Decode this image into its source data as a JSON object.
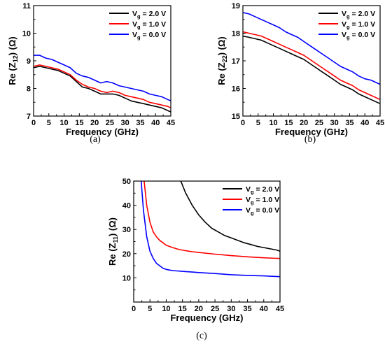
{
  "chart_data": [
    {
      "panel": "(a)",
      "type": "line",
      "xlabel": "Frequency (GHz)",
      "ylabel": "Re (Z12) (Ω)",
      "ylabel_main": "Re (Z",
      "ylabel_sub": "12",
      "ylabel_tail": ") (Ω)",
      "xlim": [
        0,
        45
      ],
      "ylim": [
        7,
        11
      ],
      "xticks": [
        0,
        5,
        10,
        15,
        20,
        25,
        30,
        35,
        40,
        45
      ],
      "yticks": [
        7,
        8,
        9,
        10,
        11
      ],
      "legend_position": "top-right",
      "series": [
        {
          "name": "Vg = 2.0 V",
          "label_main": "V",
          "label_sub": "g",
          "label_tail": " = 2.0 V",
          "color": "#000000",
          "x": [
            0,
            2,
            4,
            6,
            8,
            10,
            12,
            14,
            16,
            18,
            20,
            22,
            24,
            26,
            28,
            30,
            32,
            34,
            36,
            38,
            40,
            42,
            44,
            45
          ],
          "y": [
            8.75,
            8.8,
            8.75,
            8.7,
            8.65,
            8.55,
            8.45,
            8.25,
            8.05,
            8.0,
            7.9,
            7.8,
            7.8,
            7.8,
            7.75,
            7.65,
            7.55,
            7.5,
            7.45,
            7.4,
            7.35,
            7.3,
            7.2,
            7.15
          ]
        },
        {
          "name": "Vg = 1.0 V",
          "label_main": "V",
          "label_sub": "g",
          "label_tail": " = 1.0 V",
          "color": "#ff0000",
          "x": [
            0,
            2,
            4,
            6,
            8,
            10,
            12,
            14,
            16,
            18,
            20,
            22,
            24,
            26,
            28,
            30,
            32,
            34,
            36,
            38,
            40,
            42,
            44,
            45
          ],
          "y": [
            8.8,
            8.85,
            8.8,
            8.75,
            8.7,
            8.6,
            8.5,
            8.3,
            8.15,
            8.05,
            8.0,
            7.9,
            7.85,
            7.9,
            7.85,
            7.75,
            7.7,
            7.65,
            7.6,
            7.5,
            7.45,
            7.4,
            7.35,
            7.3
          ]
        },
        {
          "name": "Vg = 0.0 V",
          "label_main": "V",
          "label_sub": "g",
          "label_tail": " = 0.0 V",
          "color": "#0000ff",
          "x": [
            0,
            2,
            4,
            6,
            8,
            10,
            12,
            14,
            16,
            18,
            20,
            22,
            24,
            26,
            28,
            30,
            32,
            34,
            36,
            38,
            40,
            42,
            44,
            45
          ],
          "y": [
            9.2,
            9.2,
            9.1,
            9.05,
            8.95,
            8.85,
            8.75,
            8.55,
            8.45,
            8.4,
            8.3,
            8.2,
            8.25,
            8.2,
            8.1,
            8.05,
            8.0,
            7.95,
            7.9,
            7.8,
            7.75,
            7.7,
            7.6,
            7.55
          ]
        }
      ]
    },
    {
      "panel": "(b)",
      "type": "line",
      "xlabel": "Frequency (GHz)",
      "ylabel": "Re (Z22) (Ω)",
      "ylabel_main": "Re (Z",
      "ylabel_sub": "22",
      "ylabel_tail": ") (Ω)",
      "xlim": [
        0,
        45
      ],
      "ylim": [
        15,
        19
      ],
      "xticks": [
        0,
        5,
        10,
        15,
        20,
        25,
        30,
        35,
        40,
        45
      ],
      "yticks": [
        15,
        16,
        17,
        18,
        19
      ],
      "legend_position": "top-right",
      "series": [
        {
          "name": "Vg = 2.0 V",
          "label_main": "V",
          "label_sub": "g",
          "label_tail": " = 2.0 V",
          "color": "#000000",
          "x": [
            0,
            2,
            4,
            6,
            8,
            10,
            12,
            14,
            16,
            18,
            20,
            22,
            24,
            26,
            28,
            30,
            32,
            34,
            36,
            38,
            40,
            42,
            44,
            45
          ],
          "y": [
            17.9,
            17.85,
            17.8,
            17.75,
            17.65,
            17.55,
            17.45,
            17.35,
            17.25,
            17.15,
            17.05,
            16.9,
            16.75,
            16.6,
            16.45,
            16.3,
            16.15,
            16.05,
            15.95,
            15.8,
            15.7,
            15.6,
            15.5,
            15.45
          ]
        },
        {
          "name": "Vg = 1.0 V",
          "label_main": "V",
          "label_sub": "g",
          "label_tail": " = 1.0 V",
          "color": "#ff0000",
          "x": [
            0,
            2,
            4,
            6,
            8,
            10,
            12,
            14,
            16,
            18,
            20,
            22,
            24,
            26,
            28,
            30,
            32,
            34,
            36,
            38,
            40,
            42,
            44,
            45
          ],
          "y": [
            18.05,
            18.0,
            17.95,
            17.9,
            17.8,
            17.7,
            17.6,
            17.5,
            17.4,
            17.3,
            17.2,
            17.05,
            16.9,
            16.75,
            16.6,
            16.45,
            16.3,
            16.2,
            16.1,
            15.95,
            15.85,
            15.75,
            15.65,
            15.6
          ]
        },
        {
          "name": "Vg = 0.0 V",
          "label_main": "V",
          "label_sub": "g",
          "label_tail": " = 0.0 V",
          "color": "#0000ff",
          "x": [
            0,
            2,
            4,
            6,
            8,
            10,
            12,
            14,
            16,
            18,
            20,
            22,
            24,
            26,
            28,
            30,
            32,
            34,
            36,
            38,
            40,
            42,
            44,
            45
          ],
          "y": [
            18.75,
            18.7,
            18.6,
            18.5,
            18.4,
            18.3,
            18.2,
            18.05,
            17.95,
            17.85,
            17.7,
            17.55,
            17.4,
            17.25,
            17.1,
            16.95,
            16.8,
            16.7,
            16.6,
            16.45,
            16.35,
            16.3,
            16.2,
            16.15
          ]
        }
      ]
    },
    {
      "panel": "(c)",
      "type": "line",
      "xlabel": "Frequency (GHz)",
      "ylabel": "Re (Z11) (Ω)",
      "ylabel_main": "Re (Z",
      "ylabel_sub": "11",
      "ylabel_tail": ") (Ω)",
      "xlim": [
        0,
        45
      ],
      "ylim": [
        0,
        50
      ],
      "xticks": [
        0,
        5,
        10,
        15,
        20,
        25,
        30,
        35,
        40,
        45
      ],
      "yticks": [
        10,
        20,
        30,
        40,
        50
      ],
      "legend_position": "top-right",
      "series": [
        {
          "name": "Vg = 2.0 V",
          "label_main": "V",
          "label_sub": "g",
          "label_tail": " = 2.0 V",
          "color": "#000000",
          "x": [
            14.5,
            16,
            18,
            20,
            22,
            24,
            26,
            28,
            30,
            32,
            34,
            36,
            38,
            40,
            42,
            44,
            45
          ],
          "y": [
            50,
            45,
            40,
            36,
            33,
            30.5,
            29,
            27.5,
            26.5,
            25.5,
            24.5,
            23.8,
            23,
            22.5,
            22,
            21.5,
            21
          ]
        },
        {
          "name": "Vg = 1.0 V",
          "label_main": "V",
          "label_sub": "g",
          "label_tail": " = 1.0 V",
          "color": "#ff0000",
          "x": [
            3.2,
            4,
            5,
            6,
            7,
            8,
            9,
            10,
            12,
            14,
            16,
            18,
            20,
            25,
            30,
            35,
            40,
            45
          ],
          "y": [
            50,
            40,
            33,
            29,
            27,
            25.5,
            24.5,
            23.5,
            22.5,
            21.7,
            21.2,
            20.8,
            20.5,
            19.8,
            19.2,
            18.7,
            18.3,
            18
          ]
        },
        {
          "name": "Vg = 0.0 V",
          "label_main": "V",
          "label_sub": "g",
          "label_tail": " = 0.0 V",
          "color": "#0000ff",
          "x": [
            2.3,
            3,
            4,
            5,
            6,
            7,
            8,
            9,
            10,
            12,
            14,
            16,
            18,
            20,
            25,
            30,
            35,
            40,
            45
          ],
          "y": [
            50,
            38,
            27,
            21,
            18,
            16,
            15,
            14,
            13.5,
            13,
            12.8,
            12.6,
            12.4,
            12.2,
            11.8,
            11.3,
            11,
            10.8,
            10.5
          ]
        }
      ]
    }
  ]
}
